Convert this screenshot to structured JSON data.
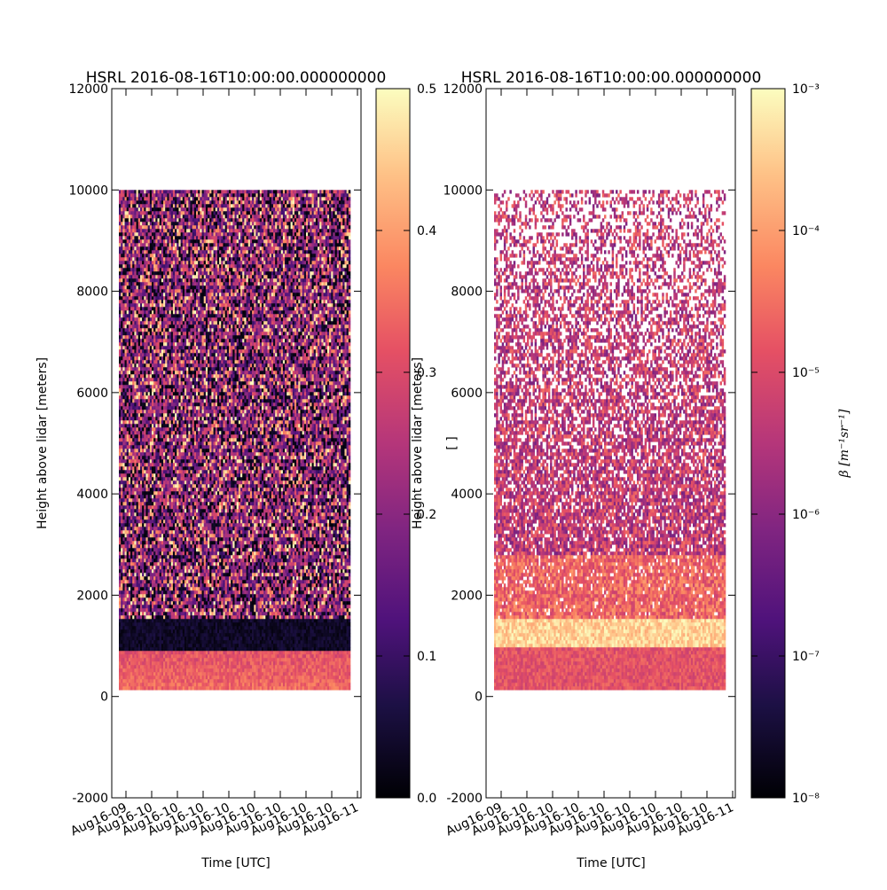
{
  "chart_data": [
    {
      "type": "heatmap",
      "title": "HSRL 2016-08-16T10:00:00.000000000",
      "xlabel": "Time [UTC]",
      "ylabel": "Height above lidar [meters]",
      "ylim": [
        -2000,
        12000
      ],
      "y_ticks": [
        "12000",
        "10000",
        "8000",
        "6000",
        "4000",
        "2000",
        "0",
        "-2000"
      ],
      "x_ticks": [
        "Aug16-09",
        "Aug16-10",
        "Aug16-10",
        "Aug16-10",
        "Aug16-10",
        "Aug16-10",
        "Aug16-10",
        "Aug16-10",
        "Aug16-10",
        "Aug16-11"
      ],
      "colormap": "magma",
      "colorbar": {
        "scale": "linear",
        "range": [
          0.0,
          0.5
        ],
        "ticks": [
          "0.0",
          "0.1",
          "0.2",
          "0.3",
          "0.4",
          "0.5"
        ],
        "label": ""
      },
      "data_extent": {
        "height_min": 100,
        "height_max": 10000
      },
      "layers": [
        {
          "from": 100,
          "to": 900,
          "description_level": 0.32
        },
        {
          "from": 900,
          "to": 1500,
          "description_level": 0.02
        },
        {
          "from": 1500,
          "to": 10000,
          "description_level": 0.18
        }
      ]
    },
    {
      "type": "heatmap",
      "title": "HSRL 2016-08-16T10:00:00.000000000",
      "xlabel": "Time [UTC]",
      "ylabel": "Height above lidar [meters]",
      "ylim": [
        -2000,
        12000
      ],
      "y_ticks": [
        "12000",
        "10000",
        "8000",
        "6000",
        "4000",
        "2000",
        "0",
        "-2000"
      ],
      "x_ticks": [
        "Aug16-09",
        "Aug16-10",
        "Aug16-10",
        "Aug16-10",
        "Aug16-10",
        "Aug16-10",
        "Aug16-10",
        "Aug16-10",
        "Aug16-10",
        "Aug16-11"
      ],
      "colormap": "magma",
      "colorbar": {
        "scale": "log",
        "range": [
          1e-08,
          0.001
        ],
        "ticks": [
          "10⁻³",
          "10⁻⁴",
          "10⁻⁵",
          "10⁻⁶",
          "10⁻⁷",
          "10⁻⁸"
        ],
        "label": "β [m⁻¹sr⁻¹]"
      },
      "extra_label": "[ ]",
      "data_extent": {
        "height_min": 100,
        "height_max": 10000
      },
      "layers": [
        {
          "from": 100,
          "to": 950,
          "description_level": 1e-05
        },
        {
          "from": 950,
          "to": 1550,
          "description_level": 0.0005
        },
        {
          "from": 1550,
          "to": 10000,
          "description_level": 3e-06
        }
      ]
    }
  ]
}
